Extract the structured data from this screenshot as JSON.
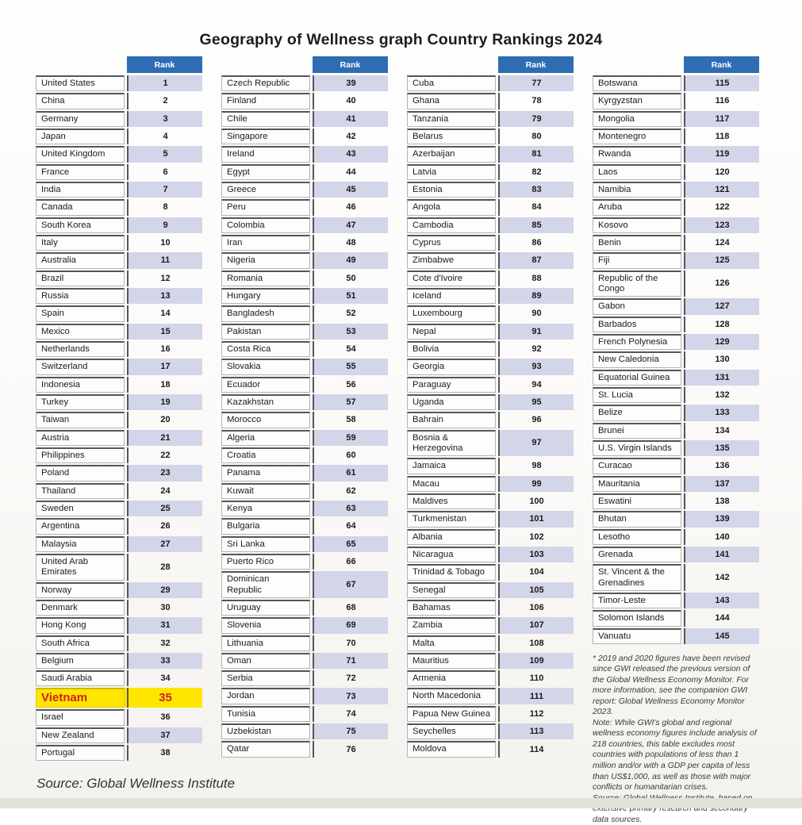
{
  "title": "Geography of Wellness graph Country Rankings 2024",
  "rank_header": "Rank",
  "source": "Source: Global Wellness Institute",
  "footnote": "* 2019 and 2020 figures have been revised since GWI released the previous version of the Global Wellness Economy Monitor. For more information, see the companion GWI report: Global Wellness Economy Monitor 2023.\nNote: While GWI's global and regional wellness economy figures include analysis of 218 countries, this table excludes most countries with populations of less than 1 million and/or with a GDP per capita of less than US$1,000, as well as those with major conflicts or humanitarian crises.\nSource: Global Wellness Institute, based on extensive primary research and secondary data sources.",
  "colors": {
    "header_blue": "#2e6db4",
    "row_lavender": "#d3d5e8",
    "highlight_yellow": "#ffe600",
    "highlight_red": "#d02020"
  },
  "chart_data": {
    "type": "table",
    "title": "Geography of Wellness graph Country Rankings 2024",
    "columns": [
      "Country",
      "Rank"
    ],
    "column_breaks": [
      38,
      76,
      114,
      145
    ],
    "highlight": {
      "country": "Vietnam",
      "rank": 35
    },
    "rows": [
      [
        "United States",
        1
      ],
      [
        "China",
        2
      ],
      [
        "Germany",
        3
      ],
      [
        "Japan",
        4
      ],
      [
        "United Kingdom",
        5
      ],
      [
        "France",
        6
      ],
      [
        "India",
        7
      ],
      [
        "Canada",
        8
      ],
      [
        "South Korea",
        9
      ],
      [
        "Italy",
        10
      ],
      [
        "Australia",
        11
      ],
      [
        "Brazil",
        12
      ],
      [
        "Russia",
        13
      ],
      [
        "Spain",
        14
      ],
      [
        "Mexico",
        15
      ],
      [
        "Netherlands",
        16
      ],
      [
        "Switzerland",
        17
      ],
      [
        "Indonesia",
        18
      ],
      [
        "Turkey",
        19
      ],
      [
        "Taiwan",
        20
      ],
      [
        "Austria",
        21
      ],
      [
        "Philippines",
        22
      ],
      [
        "Poland",
        23
      ],
      [
        "Thailand",
        24
      ],
      [
        "Sweden",
        25
      ],
      [
        "Argentina",
        26
      ],
      [
        "Malaysia",
        27
      ],
      [
        "United Arab Emirates",
        28
      ],
      [
        "Norway",
        29
      ],
      [
        "Denmark",
        30
      ],
      [
        "Hong Kong",
        31
      ],
      [
        "South Africa",
        32
      ],
      [
        "Belgium",
        33
      ],
      [
        "Saudi Arabia",
        34
      ],
      [
        "Vietnam",
        35
      ],
      [
        "Israel",
        36
      ],
      [
        "New Zealand",
        37
      ],
      [
        "Portugal",
        38
      ],
      [
        "Czech Republic",
        39
      ],
      [
        "Finland",
        40
      ],
      [
        "Chile",
        41
      ],
      [
        "Singapore",
        42
      ],
      [
        "Ireland",
        43
      ],
      [
        "Egypt",
        44
      ],
      [
        "Greece",
        45
      ],
      [
        "Peru",
        46
      ],
      [
        "Colombia",
        47
      ],
      [
        "Iran",
        48
      ],
      [
        "Nigeria",
        49
      ],
      [
        "Romania",
        50
      ],
      [
        "Hungary",
        51
      ],
      [
        "Bangladesh",
        52
      ],
      [
        "Pakistan",
        53
      ],
      [
        "Costa Rica",
        54
      ],
      [
        "Slovakia",
        55
      ],
      [
        "Ecuador",
        56
      ],
      [
        "Kazakhstan",
        57
      ],
      [
        "Morocco",
        58
      ],
      [
        "Algeria",
        59
      ],
      [
        "Croatia",
        60
      ],
      [
        "Panama",
        61
      ],
      [
        "Kuwait",
        62
      ],
      [
        "Kenya",
        63
      ],
      [
        "Bulgaria",
        64
      ],
      [
        "Sri Lanka",
        65
      ],
      [
        "Puerto Rico",
        66
      ],
      [
        "Dominican Republic",
        67
      ],
      [
        "Uruguay",
        68
      ],
      [
        "Slovenia",
        69
      ],
      [
        "Lithuania",
        70
      ],
      [
        "Oman",
        71
      ],
      [
        "Serbia",
        72
      ],
      [
        "Jordan",
        73
      ],
      [
        "Tunisia",
        74
      ],
      [
        "Uzbekistan",
        75
      ],
      [
        "Qatar",
        76
      ],
      [
        "Cuba",
        77
      ],
      [
        "Ghana",
        78
      ],
      [
        "Tanzania",
        79
      ],
      [
        "Belarus",
        80
      ],
      [
        "Azerbaijan",
        81
      ],
      [
        "Latvia",
        82
      ],
      [
        "Estonia",
        83
      ],
      [
        "Angola",
        84
      ],
      [
        "Cambodia",
        85
      ],
      [
        "Cyprus",
        86
      ],
      [
        "Zimbabwe",
        87
      ],
      [
        "Cote d'Ivoire",
        88
      ],
      [
        "Iceland",
        89
      ],
      [
        "Luxembourg",
        90
      ],
      [
        "Nepal",
        91
      ],
      [
        "Bolivia",
        92
      ],
      [
        "Georgia",
        93
      ],
      [
        "Paraguay",
        94
      ],
      [
        "Uganda",
        95
      ],
      [
        "Bahrain",
        96
      ],
      [
        "Bosnia & Herzegovina",
        97
      ],
      [
        "Jamaica",
        98
      ],
      [
        "Macau",
        99
      ],
      [
        "Maldives",
        100
      ],
      [
        "Turkmenistan",
        101
      ],
      [
        "Albania",
        102
      ],
      [
        "Nicaragua",
        103
      ],
      [
        "Trinidad & Tobago",
        104
      ],
      [
        "Senegal",
        105
      ],
      [
        "Bahamas",
        106
      ],
      [
        "Zambia",
        107
      ],
      [
        "Malta",
        108
      ],
      [
        "Mauritius",
        109
      ],
      [
        "Armenia",
        110
      ],
      [
        "North Macedonia",
        111
      ],
      [
        "Papua New Guinea",
        112
      ],
      [
        "Seychelles",
        113
      ],
      [
        "Moldova",
        114
      ],
      [
        "Botswana",
        115
      ],
      [
        "Kyrgyzstan",
        116
      ],
      [
        "Mongolia",
        117
      ],
      [
        "Montenegro",
        118
      ],
      [
        "Rwanda",
        119
      ],
      [
        "Laos",
        120
      ],
      [
        "Namibia",
        121
      ],
      [
        "Aruba",
        122
      ],
      [
        "Kosovo",
        123
      ],
      [
        "Benin",
        124
      ],
      [
        "Fiji",
        125
      ],
      [
        "Republic of the Congo",
        126
      ],
      [
        "Gabon",
        127
      ],
      [
        "Barbados",
        128
      ],
      [
        "French Polynesia",
        129
      ],
      [
        "New Caledonia",
        130
      ],
      [
        "Equatorial Guinea",
        131
      ],
      [
        "St. Lucia",
        132
      ],
      [
        "Belize",
        133
      ],
      [
        "Brunei",
        134
      ],
      [
        "U.S. Virgin Islands",
        135
      ],
      [
        "Curacao",
        136
      ],
      [
        "Mauritania",
        137
      ],
      [
        "Eswatini",
        138
      ],
      [
        "Bhutan",
        139
      ],
      [
        "Lesotho",
        140
      ],
      [
        "Grenada",
        141
      ],
      [
        "St. Vincent & the Grenadines",
        142
      ],
      [
        "Timor-Leste",
        143
      ],
      [
        "Solomon Islands",
        144
      ],
      [
        "Vanuatu",
        145
      ]
    ]
  }
}
